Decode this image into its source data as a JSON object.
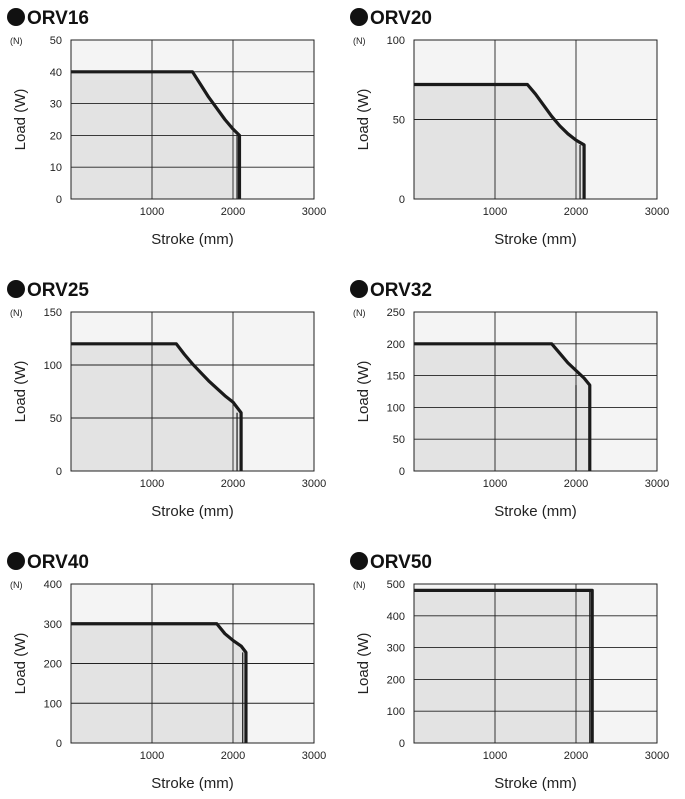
{
  "chart_data": [
    {
      "type": "line",
      "title": "ORV16",
      "unit": "(N)",
      "xlabel": "Stroke (mm)",
      "ylabel": "Load (W)",
      "xlim": [
        0,
        3000
      ],
      "ylim": [
        0,
        50
      ],
      "xticks": [
        1000,
        2000,
        3000
      ],
      "yticks": [
        0,
        10,
        20,
        30,
        40,
        50
      ],
      "grid": true,
      "series": [
        {
          "x": [
            0,
            1500,
            1600,
            1700,
            1800,
            1900,
            2000,
            2080,
            2080
          ],
          "y": [
            40,
            40,
            36,
            32,
            28.5,
            25,
            22,
            20,
            0
          ]
        }
      ],
      "limit_x": 2050
    },
    {
      "type": "line",
      "title": "ORV20",
      "unit": "(N)",
      "xlabel": "Stroke (mm)",
      "ylabel": "Load (W)",
      "xlim": [
        0,
        3000
      ],
      "ylim": [
        0,
        100
      ],
      "xticks": [
        1000,
        2000,
        3000
      ],
      "yticks": [
        0,
        50,
        100
      ],
      "grid": true,
      "series": [
        {
          "x": [
            0,
            1400,
            1500,
            1600,
            1700,
            1800,
            1900,
            2000,
            2100,
            2100
          ],
          "y": [
            72,
            72,
            66,
            59,
            52,
            46,
            41,
            37,
            34,
            0
          ]
        }
      ],
      "limit_x": 2050
    },
    {
      "type": "line",
      "title": "ORV25",
      "unit": "(N)",
      "xlabel": "Stroke (mm)",
      "ylabel": "Load (W)",
      "xlim": [
        0,
        3000
      ],
      "ylim": [
        0,
        150
      ],
      "xticks": [
        1000,
        2000,
        3000
      ],
      "yticks": [
        0,
        50,
        100,
        150
      ],
      "grid": true,
      "series": [
        {
          "x": [
            0,
            1300,
            1400,
            1500,
            1600,
            1700,
            1800,
            1900,
            2000,
            2100,
            2100
          ],
          "y": [
            120,
            120,
            110,
            101,
            93,
            85,
            78,
            71,
            65,
            55,
            0
          ]
        }
      ],
      "limit_x": 2050
    },
    {
      "type": "line",
      "title": "ORV32",
      "unit": "(N)",
      "xlabel": "Stroke (mm)",
      "ylabel": "Load (W)",
      "xlim": [
        0,
        3000
      ],
      "ylim": [
        0,
        250
      ],
      "xticks": [
        1000,
        2000,
        3000
      ],
      "yticks": [
        0,
        50,
        100,
        150,
        200,
        250
      ],
      "grid": true,
      "series": [
        {
          "x": [
            0,
            1700,
            1800,
            1900,
            2000,
            2100,
            2170,
            2170
          ],
          "y": [
            200,
            200,
            185,
            170,
            158,
            146,
            135,
            0
          ]
        }
      ],
      "limit_x": 2000
    },
    {
      "type": "line",
      "title": "ORV40",
      "unit": "(N)",
      "xlabel": "Stroke (mm)",
      "ylabel": "Load (W)",
      "xlim": [
        0,
        3000
      ],
      "ylim": [
        0,
        400
      ],
      "xticks": [
        1000,
        2000,
        3000
      ],
      "yticks": [
        0,
        100,
        200,
        300,
        400
      ],
      "grid": true,
      "series": [
        {
          "x": [
            0,
            1800,
            1900,
            2000,
            2100,
            2160,
            2160
          ],
          "y": [
            300,
            300,
            275,
            258,
            244,
            228,
            0
          ]
        }
      ],
      "limit_x": 2120
    },
    {
      "type": "line",
      "title": "ORV50",
      "unit": "(N)",
      "xlabel": "Stroke (mm)",
      "ylabel": "Load (W)",
      "xlim": [
        0,
        3000
      ],
      "ylim": [
        0,
        500
      ],
      "xticks": [
        1000,
        2000,
        3000
      ],
      "yticks": [
        0,
        100,
        200,
        300,
        400,
        500
      ],
      "grid": true,
      "series": [
        {
          "x": [
            0,
            2200,
            2200
          ],
          "y": [
            480,
            480,
            0
          ]
        }
      ],
      "limit_x": 2170
    }
  ]
}
